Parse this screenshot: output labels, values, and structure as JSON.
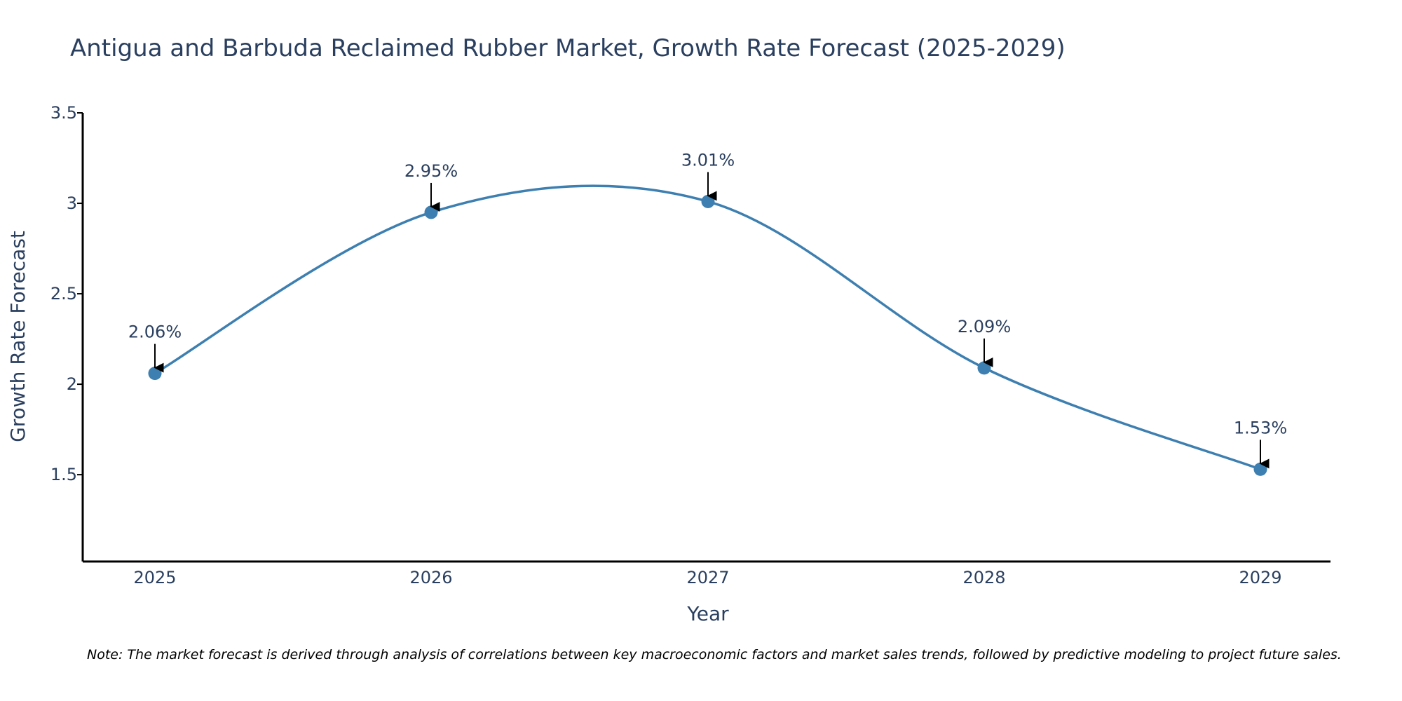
{
  "chart_data": {
    "type": "line",
    "title": "Antigua and Barbuda Reclaimed Rubber Market, Growth Rate Forecast (2025-2029)",
    "xlabel": "Year",
    "ylabel": "Growth Rate Forecast",
    "categories": [
      "2025",
      "2026",
      "2027",
      "2028",
      "2029"
    ],
    "series": [
      {
        "name": "Growth Rate Forecast",
        "values": [
          2.06,
          2.95,
          3.01,
          2.09,
          1.53
        ],
        "labels": [
          "2.06%",
          "2.95%",
          "3.01%",
          "2.09%",
          "1.53%"
        ],
        "color": "#3d7fb0"
      }
    ],
    "ylim": [
      1.02,
      3.5
    ],
    "yticks": [
      1.5,
      2,
      2.5,
      3,
      3.5
    ],
    "ytick_labels": [
      "1.5",
      "2",
      "2.5",
      "3",
      "3.5"
    ],
    "grid": false,
    "line_shape": "spline"
  },
  "note": "Note: The market forecast is derived through analysis of correlations between key macroeconomic factors and market sales trends, followed by predictive modeling to project future sales.",
  "colors": {
    "text": "#2a3f5f",
    "axis": "#000000",
    "line": "#3d7fb0",
    "arrow": "#000000"
  }
}
